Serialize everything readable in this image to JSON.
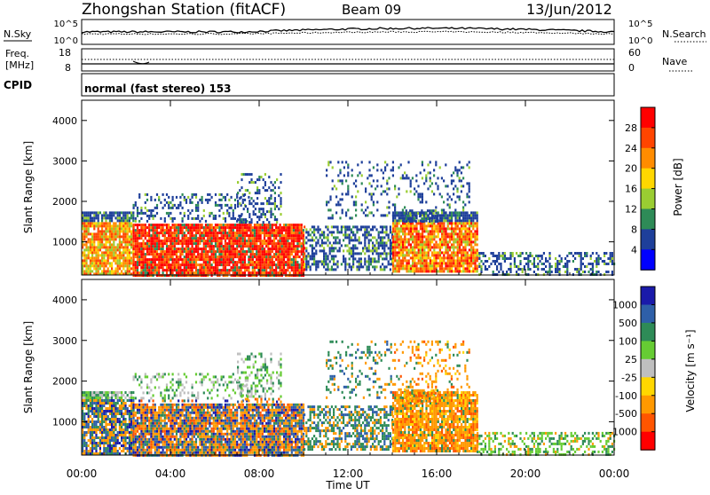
{
  "header": {
    "station": "Zhongshan Station (fitACF)",
    "beam": "Beam 09",
    "date": "13/Jun/2012"
  },
  "top_panels": {
    "nsky_label": "N.Sky",
    "nsky_ticks": [
      "10^5",
      "10^0"
    ],
    "nsearch_label": "N.Search",
    "nsearch_ticks": [
      "10^5",
      "10^0"
    ],
    "freq_label_1": "Freq.",
    "freq_label_2": "[MHz]",
    "freq_ticks": [
      "18",
      "8"
    ],
    "nave_label": "Nave",
    "nave_ticks": [
      "60",
      "0"
    ],
    "cpid_label": "CPID",
    "cpid_text": "normal (fast stereo) 153"
  },
  "chart_data": [
    {
      "type": "heatmap",
      "name": "power",
      "ylabel": "Slant Range [km]",
      "yticks": [
        "4000",
        "3000",
        "2000",
        "1000"
      ],
      "ylim": [
        180,
        4500
      ],
      "xlim": [
        0,
        24
      ],
      "colorbar_label": "Power [dB]",
      "colorbar_ticks": [
        "28",
        "24",
        "20",
        "16",
        "12",
        "8",
        "4"
      ],
      "colorbar_colors": [
        "#ff0000",
        "#ff4500",
        "#ff8c00",
        "#ffd700",
        "#9acd32",
        "#2e8b57",
        "#1e3f9a",
        "#0000ff"
      ]
    },
    {
      "type": "heatmap",
      "name": "velocity",
      "ylabel": "Slant Range [km]",
      "yticks": [
        "4000",
        "3000",
        "2000",
        "1000"
      ],
      "ylim": [
        180,
        4500
      ],
      "xlim": [
        0,
        24
      ],
      "xlabel": "Time UT",
      "xticks": [
        "00:00",
        "04:00",
        "08:00",
        "12:00",
        "16:00",
        "20:00",
        "00:00"
      ],
      "colorbar_label": "Velocity [m s⁻¹]",
      "colorbar_ticks": [
        "1000",
        "500",
        "100",
        "25",
        "-25",
        "-100",
        "-500",
        "-1000"
      ],
      "colorbar_colors": [
        "#1a1aaa",
        "#2e5fa8",
        "#2e8b57",
        "#66cc33",
        "#bfbfbf",
        "#ffd700",
        "#ff9900",
        "#ff5500",
        "#ff0000"
      ]
    }
  ]
}
